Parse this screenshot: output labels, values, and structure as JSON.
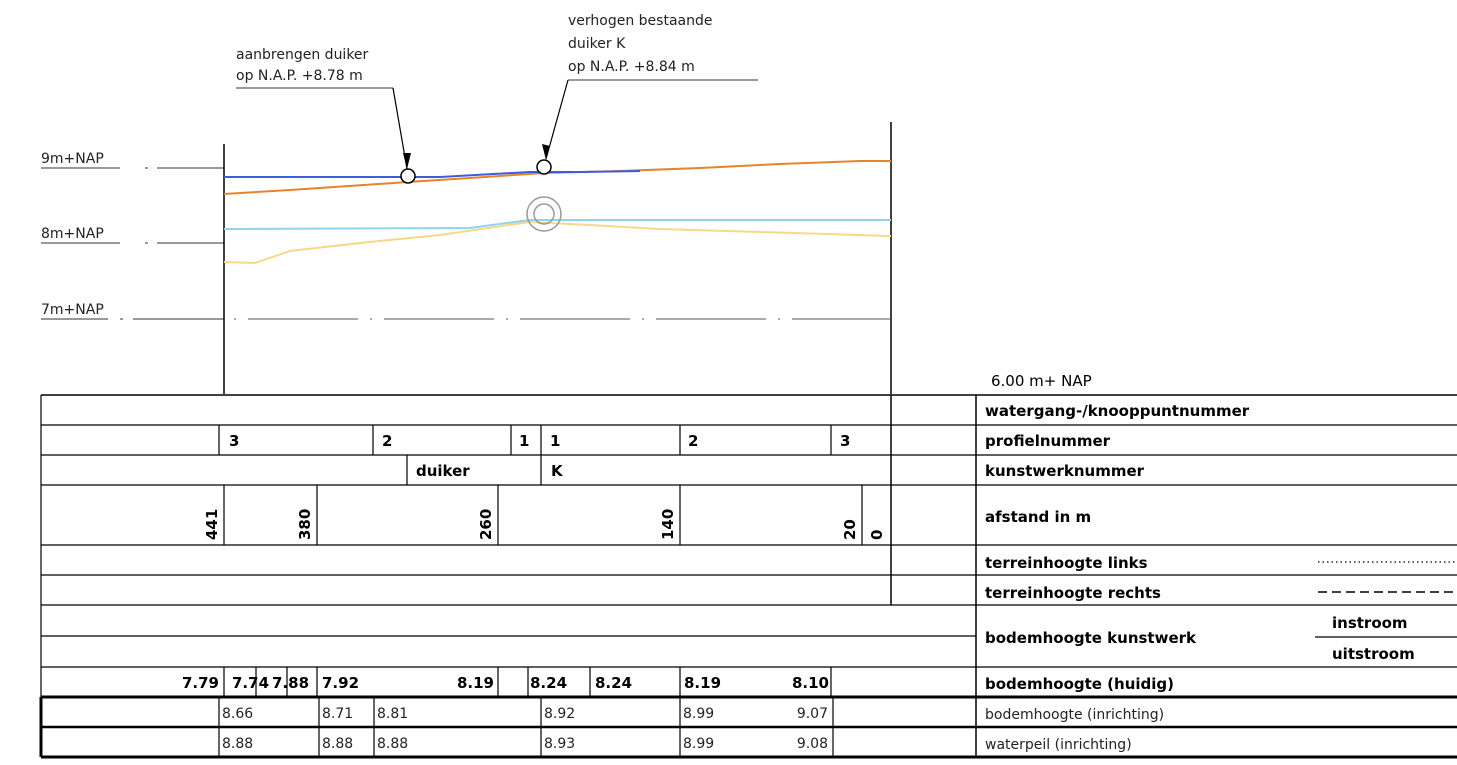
{
  "annotations": {
    "duiker_new": [
      "aanbrengen duiker",
      "op N.A.P. +8.78 m"
    ],
    "duiker_k": [
      "verhogen bestaande",
      "duiker K",
      "op N.A.P. +8.84 m"
    ]
  },
  "levels": [
    "9m+NAP",
    "8m+NAP",
    "7m+NAP"
  ],
  "reference_level": "6.00 m+ NAP",
  "rows": {
    "watergang": "watergang-/knooppuntnummer",
    "profiel": "profielnummer",
    "kunstwerk": "kunstwerknummer",
    "afstand": "afstand in m",
    "terrein_links": "terreinhoogte links",
    "terrein_rechts": "terreinhoogte rechts",
    "bodem_kunstwerk": "bodemhoogte kunstwerk",
    "instroom": "instroom",
    "uitstroom": "uitstroom",
    "bodem_huidig": "bodemhoogte (huidig)",
    "bodem_inrichting": "bodemhoogte (inrichting)",
    "waterpeil": "waterpeil (inrichting)"
  },
  "profielnummers": [
    "3",
    "2",
    "1",
    "1",
    "2",
    "3"
  ],
  "kunstwerknummers": [
    "duiker",
    "K"
  ],
  "afstanden": [
    "441",
    "380",
    "260",
    "140",
    "20",
    "0"
  ],
  "bodem_huidig_values": [
    "7.79",
    "7.74",
    "7.88",
    "7.92",
    "8.19",
    "8.24",
    "8.24",
    "8.19",
    "8.10"
  ],
  "bodem_inrichting_values": [
    "8.66",
    "8.71",
    "8.81",
    "8.92",
    "8.99",
    "9.07"
  ],
  "waterpeil_values": [
    "8.88",
    "8.88",
    "8.88",
    "8.93",
    "8.99",
    "9.08"
  ],
  "colors": {
    "waterpeil_line": "#3a5fd6",
    "bodem_inrichting_line": "#e8832a",
    "bodem_huidig_line": "#8fd3ec",
    "terrein_line": "#f5d98b",
    "axis": "#000000",
    "reference": "#555555"
  }
}
